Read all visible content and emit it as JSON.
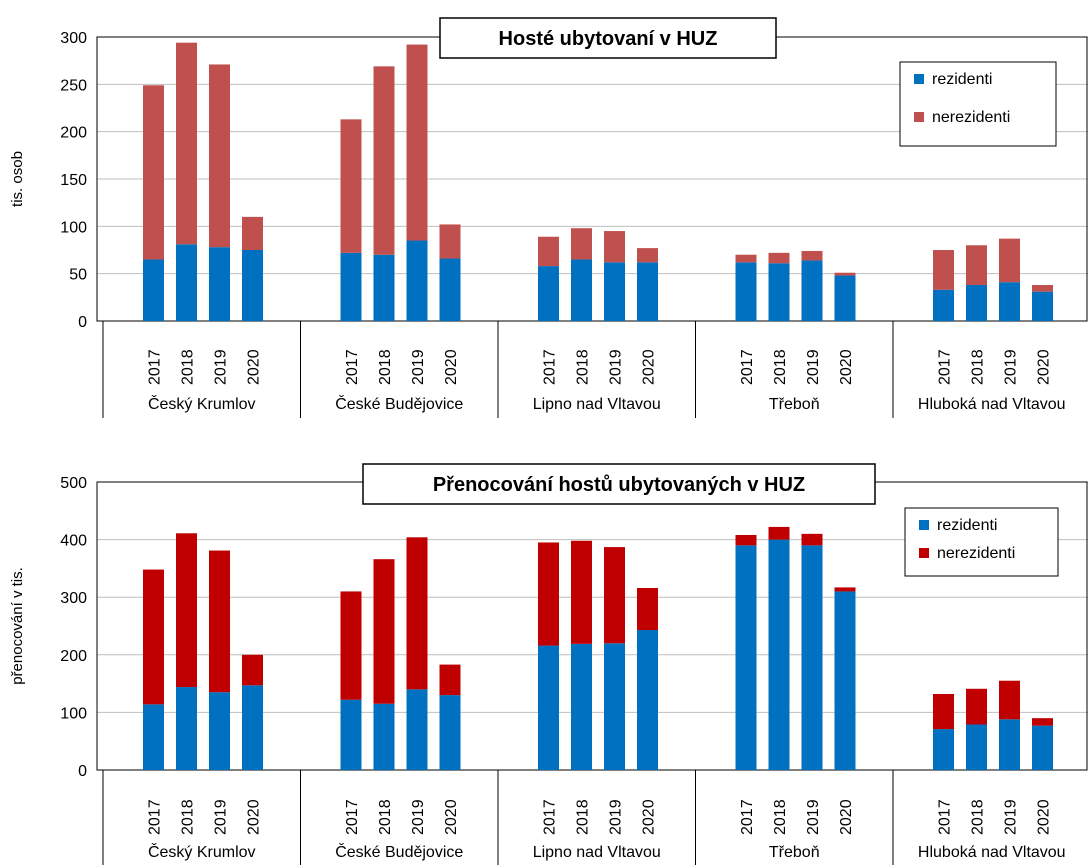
{
  "chart_data": [
    {
      "type": "bar",
      "stacked": true,
      "title": "Hosté ubytovaní v HUZ",
      "ylabel": "tis. osob",
      "xlabel": "",
      "ylim": [
        0,
        300
      ],
      "yticks": [
        0,
        50,
        100,
        150,
        200,
        250,
        300
      ],
      "grid": true,
      "legend_position": "top-right",
      "groups": [
        "Český Krumlov",
        "České Budějovice",
        "Lipno nad Vltavou",
        "Třeboň",
        "Hluboká nad Vltavou"
      ],
      "years": [
        "2017",
        "2018",
        "2019",
        "2020"
      ],
      "series": [
        {
          "name": "rezidenti",
          "color": "#0070C0",
          "values": [
            [
              65,
              81,
              78,
              75
            ],
            [
              72,
              70,
              85,
              66
            ],
            [
              58,
              65,
              62,
              62
            ],
            [
              62,
              61,
              64,
              48
            ],
            [
              33,
              38,
              41,
              31
            ]
          ]
        },
        {
          "name": "nerezidenti",
          "color": "#C0504D",
          "values": [
            [
              184,
              213,
              193,
              35
            ],
            [
              141,
              199,
              207,
              36
            ],
            [
              31,
              33,
              33,
              15
            ],
            [
              8,
              11,
              10,
              3
            ],
            [
              42,
              42,
              46,
              7
            ]
          ]
        }
      ]
    },
    {
      "type": "bar",
      "stacked": true,
      "title": "Přenocování hostů ubytovaných v HUZ",
      "ylabel": "přenocování v tis.",
      "xlabel": "",
      "ylim": [
        0,
        500
      ],
      "yticks": [
        0,
        100,
        200,
        300,
        400,
        500
      ],
      "grid": true,
      "legend_position": "top-right",
      "groups": [
        "Český Krumlov",
        "České Budějovice",
        "Lipno nad Vltavou",
        "Třeboň",
        "Hluboká nad Vltavou"
      ],
      "years": [
        "2017",
        "2018",
        "2019",
        "2020"
      ],
      "series": [
        {
          "name": "rezidenti",
          "color": "#0070C0",
          "values": [
            [
              114,
              144,
              135,
              147
            ],
            [
              122,
              115,
              140,
              130
            ],
            [
              216,
              219,
              220,
              243
            ],
            [
              390,
              400,
              390,
              310
            ],
            [
              71,
              79,
              88,
              77
            ]
          ]
        },
        {
          "name": "nerezidenti",
          "color": "#C00000",
          "values": [
            [
              234,
              267,
              246,
              53
            ],
            [
              188,
              251,
              264,
              53
            ],
            [
              179,
              179,
              167,
              73
            ],
            [
              18,
              22,
              20,
              7
            ],
            [
              61,
              62,
              67,
              13
            ]
          ]
        }
      ]
    }
  ]
}
